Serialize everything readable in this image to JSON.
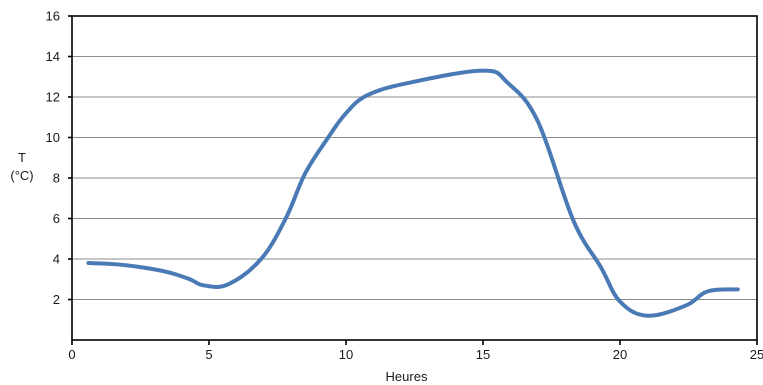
{
  "chart_data": {
    "type": "line",
    "title": "",
    "xlabel": "Heures",
    "ylabel_lines": [
      "T",
      "(°C)"
    ],
    "xlim": [
      0,
      25
    ],
    "ylim": [
      0,
      16
    ],
    "xticks": [
      0,
      5,
      10,
      15,
      20,
      25
    ],
    "yticks": [
      2,
      4,
      6,
      8,
      10,
      12,
      14,
      16
    ],
    "grid": "horizontal",
    "legend": "none",
    "line_color": "#4a7ab5",
    "series": [
      {
        "x": [
          0.6,
          1.5,
          2.5,
          3.5,
          4.3,
          4.8,
          5.7,
          6.9,
          7.8,
          8.5,
          9.3,
          10.0,
          10.8,
          12.3,
          15.0,
          15.9,
          17.0,
          18.3,
          19.3,
          20.0,
          21.0,
          22.4,
          23.2,
          24.3
        ],
        "y": [
          3.8,
          3.75,
          3.6,
          3.35,
          3.0,
          2.7,
          2.75,
          4.0,
          6.0,
          8.2,
          9.9,
          11.2,
          12.1,
          12.7,
          13.3,
          12.7,
          10.8,
          5.9,
          3.6,
          1.9,
          1.2,
          1.7,
          2.4,
          2.5
        ]
      }
    ]
  }
}
